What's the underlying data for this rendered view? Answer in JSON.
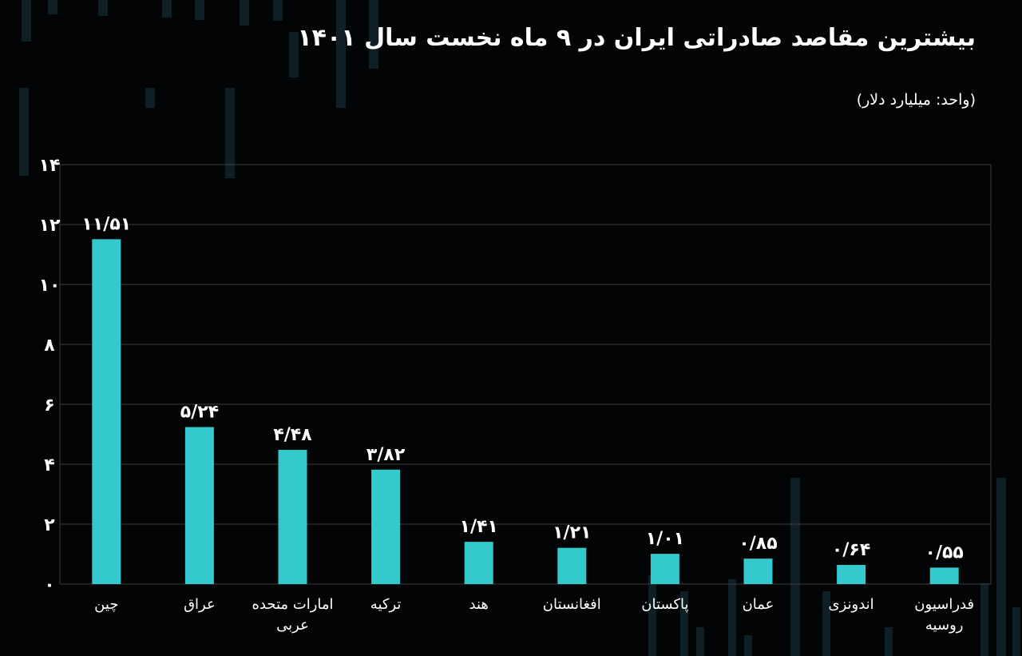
{
  "title": "بیشترین مقاصد صادراتی ایران در ۹ ماه نخست سال ۱۴۰۱",
  "unit": "(واحد: میلیارد دلار)",
  "colors": {
    "background": "#030405",
    "bar": "#34c9cd",
    "grid": "#3a3d40",
    "text": "#ffffff"
  },
  "chart_data": {
    "type": "bar",
    "title": "بیشترین مقاصد صادراتی ایران در ۹ ماه نخست سال ۱۴۰۱",
    "xlabel": "",
    "ylabel": "",
    "ylim": [
      0,
      14
    ],
    "yticks": [
      0,
      2,
      4,
      6,
      8,
      10,
      12,
      14
    ],
    "ytick_labels": [
      "۰",
      "۲",
      "۴",
      "۶",
      "۸",
      "۱۰",
      "۱۲",
      "۱۴"
    ],
    "grid": true,
    "categories": [
      [
        "چین"
      ],
      [
        "عراق"
      ],
      [
        "امارات متحده",
        "عربی"
      ],
      [
        "ترکیه"
      ],
      [
        "هند"
      ],
      [
        "افغانستان"
      ],
      [
        "پاکستان"
      ],
      [
        "عمان"
      ],
      [
        "اندونزی"
      ],
      [
        "فدراسیون",
        "روسیه"
      ]
    ],
    "values": [
      11.51,
      5.24,
      4.48,
      3.82,
      1.41,
      1.21,
      1.01,
      0.85,
      0.64,
      0.55
    ],
    "value_labels": [
      "۱۱/۵۱",
      "۵/۲۴",
      "۴/۴۸",
      "۳/۸۲",
      "۱/۴۱",
      "۱/۲۱",
      "۱/۰۱",
      "۰/۸۵",
      "۰/۶۴",
      "۰/۵۵"
    ]
  }
}
